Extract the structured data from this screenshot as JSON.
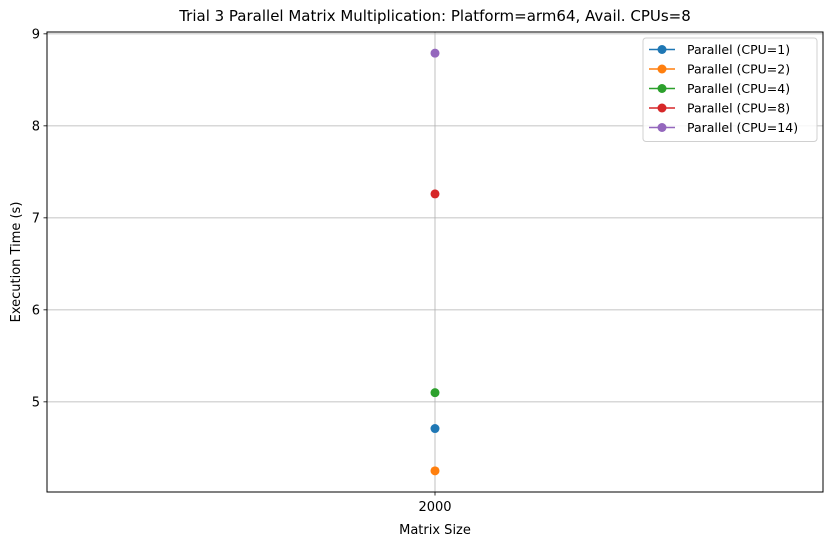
{
  "chart_data": {
    "type": "line",
    "title": "Trial 3 Parallel Matrix Multiplication: Platform=arm64, Avail. CPUs=8",
    "xlabel": "Matrix Size",
    "ylabel": "Execution Time (s)",
    "categories": [
      "2000"
    ],
    "x_tick_labels": [
      "2000"
    ],
    "y_tick_labels": [
      "5",
      "6",
      "7",
      "8",
      "9"
    ],
    "y_ticks": [
      5,
      6,
      7,
      8,
      9
    ],
    "ylim": [
      4.02,
      9.02
    ],
    "grid": true,
    "legend_position": "top-right",
    "series": [
      {
        "name": "Parallel (CPU=1)",
        "color": "#1f77b4",
        "values": [
          4.71
        ]
      },
      {
        "name": "Parallel (CPU=2)",
        "color": "#ff7f0e",
        "values": [
          4.25
        ]
      },
      {
        "name": "Parallel (CPU=4)",
        "color": "#2ca02c",
        "values": [
          5.1
        ]
      },
      {
        "name": "Parallel (CPU=8)",
        "color": "#d62728",
        "values": [
          7.26
        ]
      },
      {
        "name": "Parallel (CPU=14)",
        "color": "#9467bd",
        "values": [
          8.79
        ]
      }
    ]
  }
}
